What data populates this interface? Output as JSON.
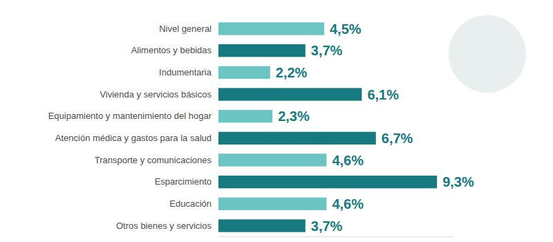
{
  "chart_data": {
    "type": "bar",
    "orientation": "horizontal",
    "categories": [
      "Nivel general",
      "Alimentos y bebidas",
      "Indumentaria",
      "Vivienda y servicios básicos",
      "Equipamiento y mantenimiento del hogar",
      "Atención médica y gastos para la salud",
      "Transporte y comunicaciones",
      "Esparcimiento",
      "Educación",
      "Otros bienes y servicios"
    ],
    "values": [
      4.5,
      3.7,
      2.2,
      6.1,
      2.3,
      6.7,
      4.6,
      9.3,
      4.6,
      3.7
    ],
    "value_labels": [
      "4,5%",
      "3,7%",
      "2,2%",
      "6,1%",
      "2,3%",
      "6,7%",
      "4,6%",
      "9,3%",
      "4,6%",
      "3,7%"
    ],
    "colors": [
      "#6cc4c3",
      "#167a80",
      "#6cc4c3",
      "#167a80",
      "#6cc4c3",
      "#167a80",
      "#6cc4c3",
      "#167a80",
      "#6cc4c3",
      "#167a80"
    ],
    "xlim": [
      0,
      10
    ],
    "data_labels": true,
    "tick_labels": "y",
    "grid": false
  }
}
